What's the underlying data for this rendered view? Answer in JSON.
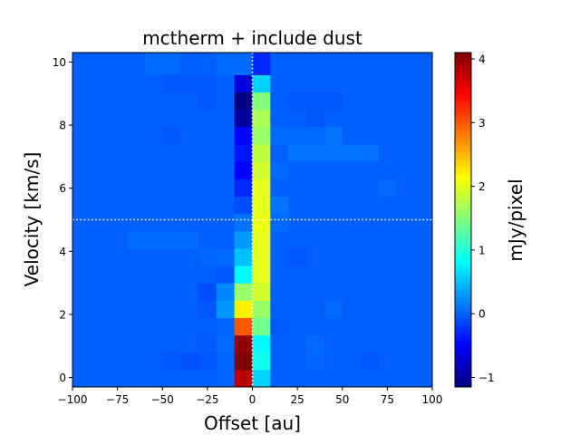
{
  "chart_data": {
    "type": "heatmap",
    "title": "mctherm + include dust",
    "xlabel": "Offset [au]",
    "ylabel": "Velocity [km/s]",
    "colorbar_label": "mJy/pixel",
    "colormap": "jet",
    "xlim": [
      -100,
      100
    ],
    "ylim": [
      -0.3,
      10.3
    ],
    "clim": [
      -1.15,
      4.1
    ],
    "x_ticks": [
      -100,
      -75,
      -50,
      -25,
      0,
      25,
      50,
      75,
      100
    ],
    "x_tick_labels": [
      "−100",
      "−75",
      "−50",
      "−25",
      "0",
      "25",
      "50",
      "75",
      "100"
    ],
    "y_ticks": [
      0,
      2,
      4,
      6,
      8,
      10
    ],
    "y_tick_labels": [
      "0",
      "2",
      "4",
      "6",
      "8",
      "10"
    ],
    "colorbar_ticks": [
      -1,
      0,
      1,
      2,
      3,
      4
    ],
    "colorbar_tick_labels": [
      "−1",
      "0",
      "1",
      "2",
      "3",
      "4"
    ],
    "x_edges": [
      -100,
      -90,
      -80,
      -70,
      -60,
      -50,
      -40,
      -30,
      -20,
      -10,
      0,
      10,
      20,
      30,
      40,
      50,
      60,
      70,
      80,
      90,
      100
    ],
    "y_edges": [
      -0.3,
      0.25,
      0.8,
      1.35,
      1.9,
      2.45,
      3.0,
      3.55,
      4.1,
      4.65,
      5.2,
      5.75,
      6.3,
      6.85,
      7.4,
      7.95,
      8.5,
      9.05,
      9.6,
      10.3
    ],
    "z": [
      [
        0,
        0,
        0,
        0,
        0,
        0,
        0,
        0,
        0.02,
        3.8,
        0.6,
        0,
        0,
        0,
        0,
        0,
        0,
        0,
        0,
        0
      ],
      [
        0,
        0,
        0,
        0,
        0,
        -0.05,
        -0.08,
        -0.05,
        0.02,
        4.1,
        0.9,
        0,
        0,
        0.03,
        0,
        0,
        -0.05,
        0,
        0,
        0
      ],
      [
        0,
        0,
        0,
        0,
        0,
        0,
        0,
        -0.02,
        0.05,
        4.0,
        0.8,
        0,
        0,
        0.05,
        0,
        0,
        0,
        0,
        0,
        0
      ],
      [
        0,
        0,
        0,
        0,
        0,
        0,
        0,
        0,
        0.02,
        3.0,
        1.4,
        -0.03,
        0,
        0,
        0,
        0,
        0,
        0,
        0,
        0
      ],
      [
        0,
        0,
        0,
        0,
        0,
        0,
        0,
        -0.05,
        0.3,
        2.2,
        1.6,
        0,
        0,
        0,
        0.05,
        0,
        0,
        0,
        0,
        0
      ],
      [
        0,
        0,
        0,
        0,
        0,
        0,
        0,
        -0.1,
        0.2,
        1.6,
        1.9,
        0,
        0,
        0,
        0,
        0,
        0,
        0,
        0,
        0
      ],
      [
        0,
        0,
        0,
        0,
        0,
        0,
        0,
        0,
        -0.05,
        0.8,
        2.0,
        0,
        0,
        0,
        0,
        0,
        0,
        0,
        0,
        0
      ],
      [
        0,
        0,
        0,
        0,
        0,
        0,
        0,
        0.02,
        0.05,
        0.5,
        2.0,
        0,
        -0.05,
        0,
        0,
        0,
        0,
        0,
        0,
        0
      ],
      [
        0,
        0,
        0,
        0.05,
        0.05,
        0.05,
        0.05,
        0,
        0,
        0.3,
        2.0,
        0,
        0,
        0,
        0,
        0,
        0,
        0,
        0,
        0
      ],
      [
        0,
        0,
        0,
        0,
        0,
        0,
        0,
        0,
        0,
        0.1,
        2.05,
        0.05,
        0,
        0,
        0,
        0,
        0,
        0,
        0,
        0
      ],
      [
        0,
        0,
        0,
        0,
        0,
        0,
        0,
        0,
        0,
        -0.1,
        2.0,
        0.1,
        0,
        0,
        0,
        0,
        0,
        0,
        0,
        0
      ],
      [
        0,
        0,
        0,
        0,
        0,
        0,
        0,
        0,
        0,
        -0.3,
        2.0,
        0,
        0,
        0,
        0,
        0,
        0,
        0.05,
        0,
        0
      ],
      [
        0,
        0,
        0,
        0,
        0,
        0,
        0,
        0,
        0,
        -0.5,
        1.9,
        0.05,
        0,
        0,
        0,
        0,
        0,
        0,
        0,
        0
      ],
      [
        0,
        0,
        0,
        0,
        0,
        0,
        0,
        0,
        0,
        -0.4,
        1.8,
        0,
        0.1,
        0.1,
        0.1,
        0.1,
        0.1,
        0,
        0,
        0
      ],
      [
        0,
        0,
        0,
        0,
        0,
        -0.05,
        0,
        0,
        0,
        -0.5,
        1.6,
        0.05,
        0.05,
        0.05,
        0.1,
        0,
        0,
        0,
        0,
        0
      ],
      [
        0,
        0,
        0,
        0,
        0,
        0,
        0,
        0,
        0,
        -1.0,
        1.7,
        0,
        0,
        -0.05,
        0,
        0,
        0,
        0,
        0,
        0
      ],
      [
        0,
        0,
        0,
        0,
        0,
        0,
        0,
        -0.05,
        0,
        -1.15,
        1.5,
        0,
        -0.05,
        -0.05,
        -0.05,
        0,
        0,
        0,
        0,
        0
      ],
      [
        0,
        0,
        0,
        0,
        0,
        -0.05,
        -0.05,
        -0.05,
        0,
        -0.7,
        0.6,
        0,
        0,
        0,
        0,
        0,
        0,
        0,
        0,
        0
      ],
      [
        0,
        0,
        0,
        0,
        0.05,
        0.05,
        0,
        0,
        0.05,
        0.05,
        -0.3,
        0,
        0,
        0,
        0,
        0,
        0,
        0,
        0,
        0
      ]
    ],
    "reference_lines": {
      "x": 0,
      "y": 5.0,
      "style": "dotted",
      "color": "#ffffff"
    },
    "grid": false
  }
}
